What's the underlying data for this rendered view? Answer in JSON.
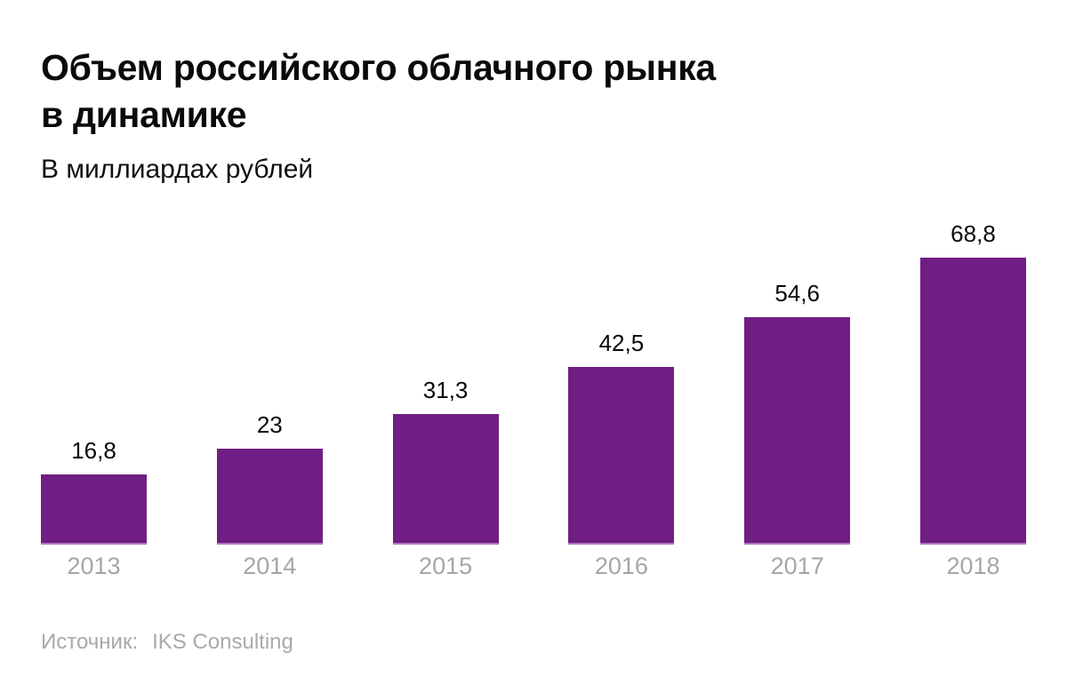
{
  "header": {
    "title_line1": "Объем российского облачного рынка",
    "title_line2": "в динамике",
    "subtitle": "В миллиардах рублей"
  },
  "chart_data": {
    "type": "bar",
    "title": "Объем российского облачного рынка в динамике",
    "subtitle_units": "В миллиардах рублей",
    "categories": [
      "2013",
      "2014",
      "2015",
      "2016",
      "2017",
      "2018"
    ],
    "values": [
      16.8,
      23,
      31.3,
      42.5,
      54.6,
      68.8
    ],
    "value_labels": [
      "16,8",
      "23",
      "31,3",
      "42,5",
      "54,6",
      "68,8"
    ],
    "ylim": [
      0,
      68.8
    ],
    "grid": false,
    "legend": false,
    "bar_color": "#701e83",
    "bar_bottom_edge_color": "#b277c2",
    "value_label_color": "#0a0a0a",
    "tick_label_color": "#a6a6a6"
  },
  "footer": {
    "source_label": "Источник:",
    "source_value": "IKS Consulting"
  }
}
